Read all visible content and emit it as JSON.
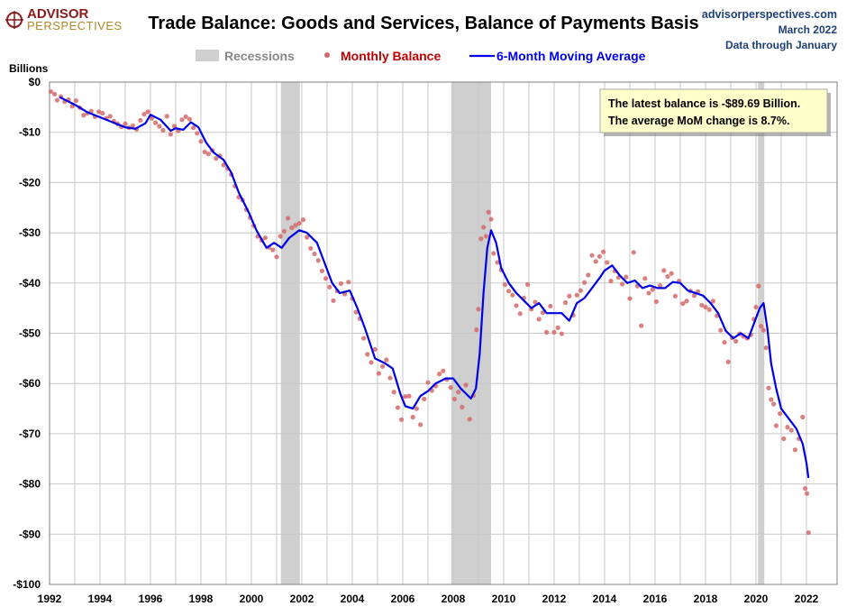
{
  "logo": {
    "line1": "ADVISOR",
    "line2": "PERSPECTIVES"
  },
  "source": {
    "site": "advisorperspectives.com",
    "date": "March 2022",
    "through": "Data through January"
  },
  "colors": {
    "recession": "#cfcfcf",
    "monthly": "#d46a6a",
    "average": "#0000e6",
    "note_bg": "#ffffcc"
  },
  "legend": {
    "recessions": "Recessions",
    "monthly": "Monthly Balance",
    "average": "6-Month Moving Average"
  },
  "annotation": {
    "line1": "The latest balance is -$89.69 Billion.",
    "line2": "The average MoM change is 8.7%."
  },
  "chart_data": {
    "type": "scatter",
    "title": "Trade Balance: Goods and Services, Balance of Payments Basis",
    "ylabel": "Billions",
    "xlim": [
      1992,
      2022.5
    ],
    "ylim": [
      -100,
      0
    ],
    "x_ticks": [
      "1992",
      "1994",
      "1996",
      "1998",
      "2000",
      "2002",
      "2004",
      "2006",
      "2008",
      "2010",
      "2012",
      "2014",
      "2016",
      "2018",
      "2020",
      "2022"
    ],
    "y_ticks": [
      "$0",
      "-$10",
      "-$20",
      "-$30",
      "-$40",
      "-$50",
      "-$60",
      "-$70",
      "-$80",
      "-$90",
      "-$100"
    ],
    "grid": true,
    "recessions": [
      [
        2001.17,
        2001.92
      ],
      [
        2007.92,
        2009.5
      ],
      [
        2020.08,
        2020.33
      ]
    ],
    "moving_average": {
      "name": "6-Month Moving Average",
      "points": [
        [
          1992.4,
          -3
        ],
        [
          1993.0,
          -4.5
        ],
        [
          1993.5,
          -6
        ],
        [
          1994.0,
          -7
        ],
        [
          1994.5,
          -8
        ],
        [
          1995.0,
          -9
        ],
        [
          1995.4,
          -9.3
        ],
        [
          1995.8,
          -8.2
        ],
        [
          1996.0,
          -6.5
        ],
        [
          1996.4,
          -7.5
        ],
        [
          1996.8,
          -9.7
        ],
        [
          1997.0,
          -9.2
        ],
        [
          1997.3,
          -9.5
        ],
        [
          1997.6,
          -8
        ],
        [
          1997.9,
          -9
        ],
        [
          1998.2,
          -12
        ],
        [
          1998.5,
          -14
        ],
        [
          1998.9,
          -15.5
        ],
        [
          1999.2,
          -18
        ],
        [
          1999.5,
          -22
        ],
        [
          1999.9,
          -26
        ],
        [
          2000.2,
          -29.5
        ],
        [
          2000.6,
          -33
        ],
        [
          2000.9,
          -32
        ],
        [
          2001.2,
          -33
        ],
        [
          2001.5,
          -31
        ],
        [
          2001.9,
          -29.5
        ],
        [
          2002.2,
          -30
        ],
        [
          2002.6,
          -32
        ],
        [
          2002.9,
          -36
        ],
        [
          2003.2,
          -40
        ],
        [
          2003.5,
          -42
        ],
        [
          2003.9,
          -41.5
        ],
        [
          2004.2,
          -45
        ],
        [
          2004.5,
          -49
        ],
        [
          2004.9,
          -55
        ],
        [
          2005.3,
          -56
        ],
        [
          2005.6,
          -57
        ],
        [
          2005.9,
          -62
        ],
        [
          2006.1,
          -64.5
        ],
        [
          2006.4,
          -65
        ],
        [
          2006.7,
          -62.5
        ],
        [
          2007.0,
          -61.5
        ],
        [
          2007.3,
          -60
        ],
        [
          2007.7,
          -59
        ],
        [
          2008.0,
          -59
        ],
        [
          2008.3,
          -61
        ],
        [
          2008.7,
          -63
        ],
        [
          2008.9,
          -61
        ],
        [
          2009.05,
          -54
        ],
        [
          2009.2,
          -42
        ],
        [
          2009.35,
          -33
        ],
        [
          2009.5,
          -29.5
        ],
        [
          2009.7,
          -32
        ],
        [
          2009.9,
          -37
        ],
        [
          2010.2,
          -40
        ],
        [
          2010.5,
          -42
        ],
        [
          2010.8,
          -43.5
        ],
        [
          2011.1,
          -45
        ],
        [
          2011.4,
          -44
        ],
        [
          2011.7,
          -46
        ],
        [
          2012.0,
          -46
        ],
        [
          2012.3,
          -46
        ],
        [
          2012.6,
          -47.5
        ],
        [
          2012.9,
          -44
        ],
        [
          2013.2,
          -43
        ],
        [
          2013.5,
          -41
        ],
        [
          2013.8,
          -39
        ],
        [
          2014.0,
          -37.5
        ],
        [
          2014.3,
          -36.5
        ],
        [
          2014.6,
          -38.5
        ],
        [
          2014.9,
          -40
        ],
        [
          2015.2,
          -39.5
        ],
        [
          2015.5,
          -41
        ],
        [
          2015.8,
          -40.5
        ],
        [
          2016.1,
          -41
        ],
        [
          2016.4,
          -41
        ],
        [
          2016.7,
          -39.8
        ],
        [
          2017.0,
          -40
        ],
        [
          2017.3,
          -41.5
        ],
        [
          2017.6,
          -42
        ],
        [
          2017.9,
          -42.5
        ],
        [
          2018.2,
          -44
        ],
        [
          2018.5,
          -46
        ],
        [
          2018.8,
          -49.5
        ],
        [
          2019.1,
          -51
        ],
        [
          2019.4,
          -50
        ],
        [
          2019.7,
          -51
        ],
        [
          2020.0,
          -47
        ],
        [
          2020.15,
          -45
        ],
        [
          2020.3,
          -44
        ],
        [
          2020.45,
          -49
        ],
        [
          2020.6,
          -56
        ],
        [
          2020.8,
          -61
        ],
        [
          2021.0,
          -65
        ],
        [
          2021.3,
          -67
        ],
        [
          2021.6,
          -69
        ],
        [
          2021.85,
          -72
        ],
        [
          2022.0,
          -75.8
        ],
        [
          2022.08,
          -78.8
        ]
      ]
    },
    "monthly_balance": {
      "name": "Monthly Balance",
      "points": [
        [
          1992.05,
          -1.9
        ],
        [
          1992.2,
          -2.4
        ],
        [
          1992.3,
          -3.6
        ],
        [
          1992.45,
          -2.9
        ],
        [
          1992.6,
          -3.9
        ],
        [
          1992.75,
          -3.5
        ],
        [
          1992.9,
          -4.8
        ],
        [
          1993.05,
          -3.7
        ],
        [
          1993.2,
          -5.1
        ],
        [
          1993.35,
          -6.6
        ],
        [
          1993.5,
          -6.2
        ],
        [
          1993.65,
          -5.8
        ],
        [
          1993.8,
          -6.9
        ],
        [
          1993.95,
          -5.9
        ],
        [
          1994.1,
          -6.2
        ],
        [
          1994.25,
          -7.2
        ],
        [
          1994.4,
          -6.8
        ],
        [
          1994.55,
          -7.8
        ],
        [
          1994.7,
          -8.3
        ],
        [
          1994.85,
          -8.9
        ],
        [
          1995.0,
          -8.3
        ],
        [
          1995.15,
          -9.1
        ],
        [
          1995.3,
          -8.7
        ],
        [
          1995.45,
          -9.4
        ],
        [
          1995.6,
          -7.6
        ],
        [
          1995.75,
          -6.4
        ],
        [
          1995.9,
          -5.9
        ],
        [
          1996.05,
          -7.2
        ],
        [
          1996.2,
          -8.1
        ],
        [
          1996.35,
          -8.8
        ],
        [
          1996.5,
          -9.6
        ],
        [
          1996.65,
          -6.8
        ],
        [
          1996.8,
          -10.4
        ],
        [
          1996.95,
          -8.8
        ],
        [
          1997.1,
          -9.7
        ],
        [
          1997.25,
          -7.5
        ],
        [
          1997.4,
          -6.9
        ],
        [
          1997.55,
          -7.4
        ],
        [
          1997.7,
          -9.1
        ],
        [
          1997.85,
          -10.2
        ],
        [
          1998.0,
          -11.8
        ],
        [
          1998.15,
          -13.9
        ],
        [
          1998.3,
          -14.3
        ],
        [
          1998.45,
          -13.6
        ],
        [
          1998.6,
          -15.2
        ],
        [
          1998.75,
          -14.7
        ],
        [
          1998.9,
          -16.5
        ],
        [
          1999.05,
          -17.2
        ],
        [
          1999.2,
          -18.4
        ],
        [
          1999.35,
          -20.7
        ],
        [
          1999.5,
          -22.9
        ],
        [
          1999.65,
          -23.5
        ],
        [
          1999.8,
          -25.4
        ],
        [
          1999.95,
          -27.0
        ],
        [
          2000.1,
          -28.6
        ],
        [
          2000.25,
          -30.7
        ],
        [
          2000.4,
          -31.5
        ],
        [
          2000.55,
          -31.0
        ],
        [
          2000.7,
          -32.9
        ],
        [
          2000.85,
          -33.4
        ],
        [
          2001.0,
          -34.8
        ],
        [
          2001.15,
          -30.7
        ],
        [
          2001.3,
          -29.7
        ],
        [
          2001.45,
          -27.1
        ],
        [
          2001.6,
          -29.0
        ],
        [
          2001.75,
          -28.5
        ],
        [
          2001.9,
          -28.1
        ],
        [
          2002.05,
          -27.4
        ],
        [
          2002.2,
          -30.9
        ],
        [
          2002.35,
          -33.1
        ],
        [
          2002.5,
          -34.2
        ],
        [
          2002.65,
          -35.5
        ],
        [
          2002.8,
          -37.6
        ],
        [
          2002.95,
          -39.1
        ],
        [
          2003.1,
          -40.8
        ],
        [
          2003.25,
          -43.5
        ],
        [
          2003.4,
          -41.6
        ],
        [
          2003.55,
          -40.1
        ],
        [
          2003.7,
          -42.2
        ],
        [
          2003.85,
          -39.8
        ],
        [
          2004.0,
          -43.1
        ],
        [
          2004.15,
          -45.8
        ],
        [
          2004.3,
          -47.1
        ],
        [
          2004.45,
          -51.0
        ],
        [
          2004.6,
          -54.2
        ],
        [
          2004.75,
          -55.8
        ],
        [
          2004.9,
          -53.2
        ],
        [
          2005.05,
          -58.0
        ],
        [
          2005.2,
          -56.6
        ],
        [
          2005.35,
          -55.3
        ],
        [
          2005.5,
          -58.9
        ],
        [
          2005.65,
          -61.7
        ],
        [
          2005.8,
          -64.8
        ],
        [
          2005.95,
          -67.2
        ],
        [
          2006.1,
          -62.6
        ],
        [
          2006.25,
          -62.5
        ],
        [
          2006.4,
          -66.7
        ],
        [
          2006.55,
          -65.0
        ],
        [
          2006.7,
          -68.2
        ],
        [
          2006.85,
          -63.1
        ],
        [
          2007.0,
          -59.8
        ],
        [
          2007.15,
          -61.4
        ],
        [
          2007.3,
          -60.5
        ],
        [
          2007.45,
          -58.1
        ],
        [
          2007.6,
          -57.5
        ],
        [
          2007.75,
          -59.2
        ],
        [
          2007.9,
          -60.8
        ],
        [
          2008.05,
          -63.1
        ],
        [
          2008.2,
          -61.7
        ],
        [
          2008.35,
          -64.7
        ],
        [
          2008.5,
          -60.3
        ],
        [
          2008.65,
          -67.1
        ],
        [
          2008.8,
          -62.4
        ],
        [
          2008.92,
          -49.3
        ],
        [
          2009.0,
          -45.2
        ],
        [
          2009.1,
          -31.2
        ],
        [
          2009.2,
          -28.9
        ],
        [
          2009.3,
          -30.7
        ],
        [
          2009.4,
          -25.9
        ],
        [
          2009.5,
          -27.3
        ],
        [
          2009.6,
          -34.1
        ],
        [
          2009.75,
          -35.9
        ],
        [
          2009.9,
          -37.4
        ],
        [
          2010.05,
          -40.3
        ],
        [
          2010.2,
          -41.6
        ],
        [
          2010.35,
          -42.4
        ],
        [
          2010.5,
          -44.5
        ],
        [
          2010.65,
          -46.1
        ],
        [
          2010.8,
          -43.0
        ],
        [
          2010.95,
          -40.3
        ],
        [
          2011.1,
          -45.2
        ],
        [
          2011.25,
          -43.8
        ],
        [
          2011.4,
          -47.2
        ],
        [
          2011.55,
          -45.9
        ],
        [
          2011.7,
          -49.8
        ],
        [
          2011.85,
          -44.6
        ],
        [
          2012.0,
          -49.8
        ],
        [
          2012.15,
          -48.9
        ],
        [
          2012.3,
          -50.1
        ],
        [
          2012.45,
          -43.9
        ],
        [
          2012.6,
          -42.6
        ],
        [
          2012.75,
          -46.4
        ],
        [
          2012.9,
          -42.4
        ],
        [
          2013.05,
          -41.5
        ],
        [
          2013.2,
          -39.9
        ],
        [
          2013.35,
          -38.4
        ],
        [
          2013.5,
          -34.5
        ],
        [
          2013.65,
          -35.7
        ],
        [
          2013.8,
          -34.7
        ],
        [
          2013.95,
          -33.8
        ],
        [
          2014.1,
          -35.9
        ],
        [
          2014.25,
          -39.6
        ],
        [
          2014.4,
          -37.6
        ],
        [
          2014.55,
          -38.9
        ],
        [
          2014.7,
          -40.2
        ],
        [
          2014.85,
          -38.8
        ],
        [
          2015.0,
          -43.1
        ],
        [
          2015.15,
          -33.9
        ],
        [
          2015.3,
          -40.6
        ],
        [
          2015.45,
          -48.5
        ],
        [
          2015.6,
          -39.1
        ],
        [
          2015.75,
          -42.0
        ],
        [
          2015.9,
          -41.3
        ],
        [
          2016.05,
          -43.7
        ],
        [
          2016.2,
          -40.5
        ],
        [
          2016.35,
          -37.5
        ],
        [
          2016.5,
          -38.7
        ],
        [
          2016.65,
          -38.1
        ],
        [
          2016.8,
          -42.6
        ],
        [
          2016.95,
          -39.6
        ],
        [
          2017.1,
          -44.1
        ],
        [
          2017.25,
          -43.6
        ],
        [
          2017.4,
          -41.6
        ],
        [
          2017.55,
          -42.5
        ],
        [
          2017.7,
          -41.7
        ],
        [
          2017.85,
          -44.4
        ],
        [
          2018.0,
          -44.8
        ],
        [
          2018.15,
          -45.3
        ],
        [
          2018.3,
          -43.6
        ],
        [
          2018.45,
          -46.5
        ],
        [
          2018.6,
          -49.4
        ],
        [
          2018.75,
          -51.8
        ],
        [
          2018.9,
          -55.7
        ],
        [
          2019.05,
          -50.9
        ],
        [
          2019.2,
          -51.6
        ],
        [
          2019.35,
          -50.1
        ],
        [
          2019.5,
          -50.6
        ],
        [
          2019.65,
          -51.0
        ],
        [
          2019.8,
          -50.3
        ],
        [
          2019.92,
          -47.2
        ],
        [
          2020.0,
          -44.8
        ],
        [
          2020.1,
          -40.6
        ],
        [
          2020.2,
          -48.6
        ],
        [
          2020.3,
          -49.4
        ],
        [
          2020.4,
          -52.9
        ],
        [
          2020.5,
          -60.9
        ],
        [
          2020.6,
          -63.2
        ],
        [
          2020.7,
          -64.1
        ],
        [
          2020.8,
          -68.4
        ],
        [
          2020.95,
          -66.0
        ],
        [
          2021.1,
          -71.0
        ],
        [
          2021.25,
          -68.7
        ],
        [
          2021.4,
          -69.3
        ],
        [
          2021.55,
          -73.2
        ],
        [
          2021.7,
          -71.0
        ],
        [
          2021.85,
          -66.7
        ],
        [
          2021.95,
          -80.9
        ],
        [
          2022.02,
          -81.9
        ],
        [
          2022.08,
          -89.69
        ]
      ]
    }
  }
}
